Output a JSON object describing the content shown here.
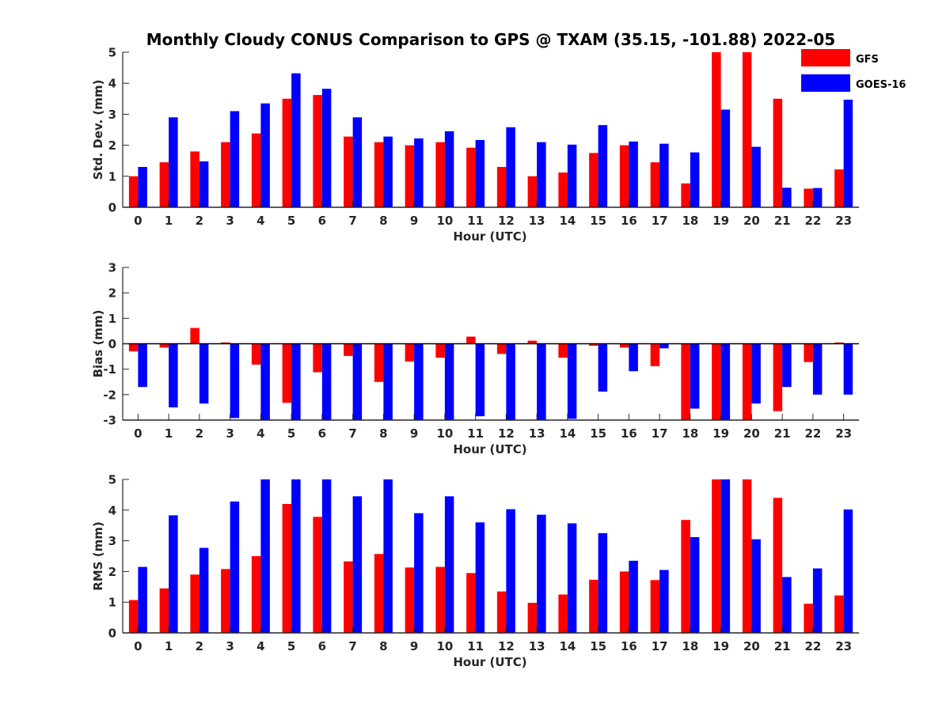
{
  "title": "Monthly Cloudy CONUS Comparison to GPS @ TXAM (35.15, -101.88) 2022-05",
  "legend": [
    {
      "name": "GFS",
      "color": "#ff0000"
    },
    {
      "name": "GOES-16",
      "color": "#0000ff"
    }
  ],
  "chart_data": [
    {
      "type": "bar",
      "xlabel": "Hour (UTC)",
      "ylabel": "Std. Dev. (mm)",
      "ylim": [
        0,
        5
      ],
      "yticks": [
        0,
        1,
        2,
        3,
        4,
        5
      ],
      "categories": [
        "0",
        "1",
        "2",
        "3",
        "4",
        "5",
        "6",
        "7",
        "8",
        "9",
        "10",
        "11",
        "12",
        "13",
        "14",
        "15",
        "16",
        "17",
        "18",
        "19",
        "20",
        "21",
        "22",
        "23"
      ],
      "series": [
        {
          "name": "GFS",
          "values": [
            1.0,
            1.45,
            1.8,
            2.1,
            2.38,
            3.5,
            3.62,
            2.28,
            2.1,
            2.0,
            2.1,
            1.92,
            1.3,
            1.0,
            1.12,
            1.75,
            2.0,
            1.45,
            0.77,
            5.0,
            5.0,
            3.5,
            0.6,
            1.22
          ]
        },
        {
          "name": "GOES-16",
          "values": [
            1.3,
            2.9,
            1.48,
            3.1,
            3.35,
            4.32,
            3.82,
            2.9,
            2.28,
            2.22,
            2.45,
            2.17,
            2.58,
            2.1,
            2.02,
            2.65,
            2.12,
            2.05,
            1.77,
            3.15,
            1.95,
            0.63,
            0.62,
            3.47
          ]
        }
      ]
    },
    {
      "type": "bar",
      "xlabel": "Hour (UTC)",
      "ylabel": "Bias (mm)",
      "ylim": [
        -3,
        3
      ],
      "yticks": [
        -3,
        -2,
        -1,
        0,
        1,
        2,
        3
      ],
      "categories": [
        "0",
        "1",
        "2",
        "3",
        "4",
        "5",
        "6",
        "7",
        "8",
        "9",
        "10",
        "11",
        "12",
        "13",
        "14",
        "15",
        "16",
        "17",
        "18",
        "19",
        "20",
        "21",
        "22",
        "23"
      ],
      "series": [
        {
          "name": "GFS",
          "values": [
            -0.3,
            -0.15,
            0.62,
            0.05,
            -0.82,
            -2.32,
            -1.12,
            -0.48,
            -1.5,
            -0.7,
            -0.55,
            0.28,
            -0.4,
            0.12,
            -0.55,
            -0.08,
            -0.15,
            -0.88,
            -3.0,
            -3.0,
            -3.0,
            -2.65,
            -0.72,
            0.05
          ]
        },
        {
          "name": "GOES-16",
          "values": [
            -1.7,
            -2.5,
            -2.35,
            -2.92,
            -3.0,
            -3.0,
            -3.0,
            -3.0,
            -3.0,
            -3.0,
            -3.0,
            -2.85,
            -3.0,
            -3.0,
            -2.95,
            -1.88,
            -1.08,
            -0.18,
            -2.55,
            -3.0,
            -2.35,
            -1.7,
            -2.0,
            -2.0
          ]
        }
      ]
    },
    {
      "type": "bar",
      "xlabel": "Hour (UTC)",
      "ylabel": "RMS (mm)",
      "ylim": [
        0,
        5
      ],
      "yticks": [
        0,
        1,
        2,
        3,
        4,
        5
      ],
      "categories": [
        "0",
        "1",
        "2",
        "3",
        "4",
        "5",
        "6",
        "7",
        "8",
        "9",
        "10",
        "11",
        "12",
        "13",
        "14",
        "15",
        "16",
        "17",
        "18",
        "19",
        "20",
        "21",
        "22",
        "23"
      ],
      "series": [
        {
          "name": "GFS",
          "values": [
            1.07,
            1.45,
            1.9,
            2.08,
            2.5,
            4.2,
            3.78,
            2.33,
            2.57,
            2.13,
            2.15,
            1.95,
            1.35,
            0.98,
            1.25,
            1.73,
            2.0,
            1.72,
            3.68,
            5.0,
            5.0,
            4.4,
            0.95,
            1.22
          ]
        },
        {
          "name": "GOES-16",
          "values": [
            2.15,
            3.83,
            2.77,
            4.28,
            5.0,
            5.0,
            5.0,
            4.45,
            5.0,
            3.9,
            4.45,
            3.6,
            4.03,
            3.85,
            3.57,
            3.25,
            2.35,
            2.05,
            3.12,
            5.0,
            3.05,
            1.82,
            2.1,
            4.02
          ]
        }
      ]
    }
  ]
}
